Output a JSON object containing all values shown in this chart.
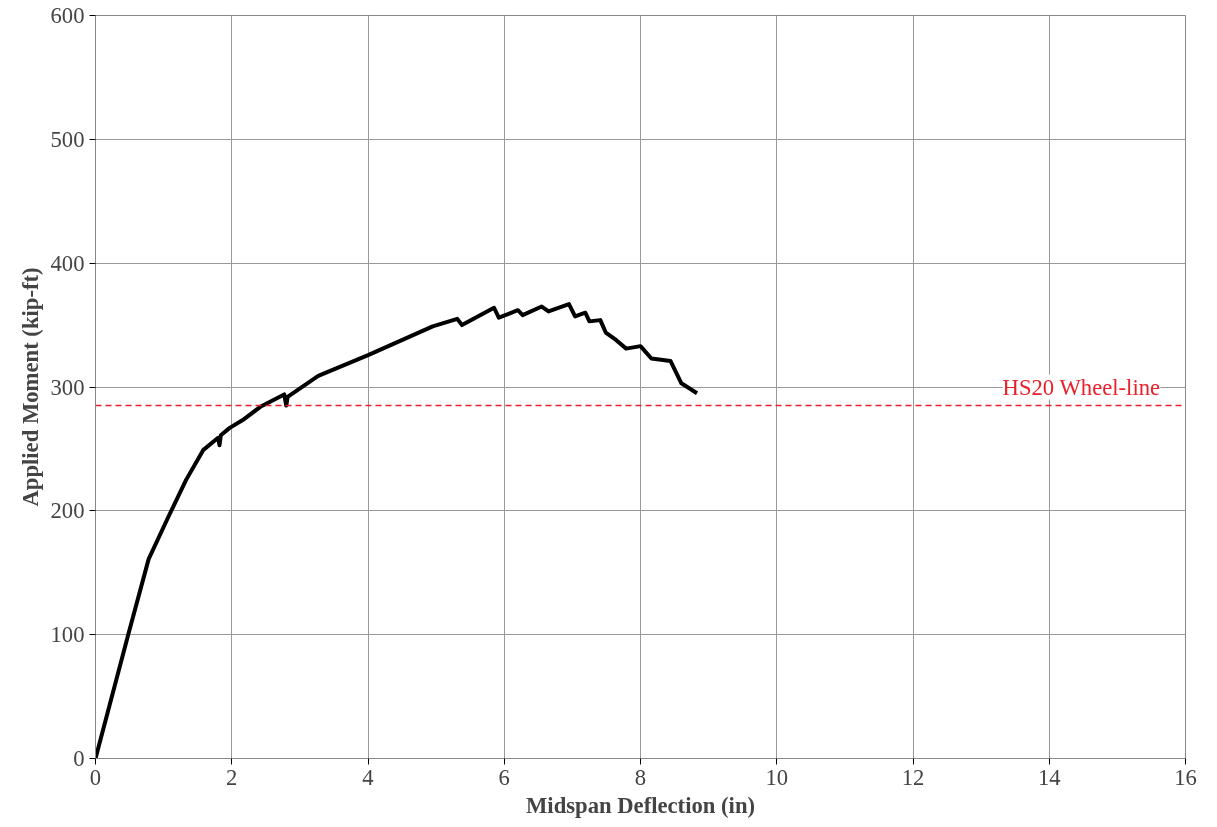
{
  "chart_data": {
    "type": "line",
    "xlabel": "Midspan Deflection (in)",
    "ylabel": "Applied Moment (kip-ft)",
    "xlim": [
      0,
      16
    ],
    "ylim": [
      0,
      600
    ],
    "xticks": [
      0,
      2,
      4,
      6,
      8,
      10,
      12,
      14,
      16
    ],
    "yticks": [
      0,
      100,
      200,
      300,
      400,
      500,
      600
    ],
    "grid": true,
    "marker": "none",
    "line_style": "solid",
    "series": [
      {
        "color": "#000000",
        "x": [
          0,
          0.48,
          0.78,
          1.06,
          1.33,
          1.58,
          1.8,
          1.82,
          1.84,
          1.97,
          2.18,
          2.42,
          2.77,
          2.8,
          2.82,
          3.27,
          4.01,
          4.95,
          5.31,
          5.38,
          5.85,
          5.92,
          6.2,
          6.27,
          6.55,
          6.65,
          6.95,
          7.04,
          7.19,
          7.25,
          7.41,
          7.49,
          7.64,
          7.79,
          8.0,
          8.16,
          8.44,
          8.6,
          8.83
        ],
        "values": [
          0,
          100,
          161,
          194,
          225,
          249,
          259,
          253,
          261,
          267,
          274,
          284,
          294,
          285,
          292,
          309,
          326,
          349,
          355,
          350,
          364,
          356,
          362,
          358,
          365,
          361,
          367,
          357,
          360,
          353,
          354,
          344,
          338,
          331,
          333,
          323,
          321,
          303,
          295
        ]
      }
    ],
    "ref_lines": [
      {
        "axis": "y",
        "value": 285,
        "label": "HS20 Wheel-line",
        "color": "#e8202a",
        "line_style": "dashed"
      }
    ]
  }
}
